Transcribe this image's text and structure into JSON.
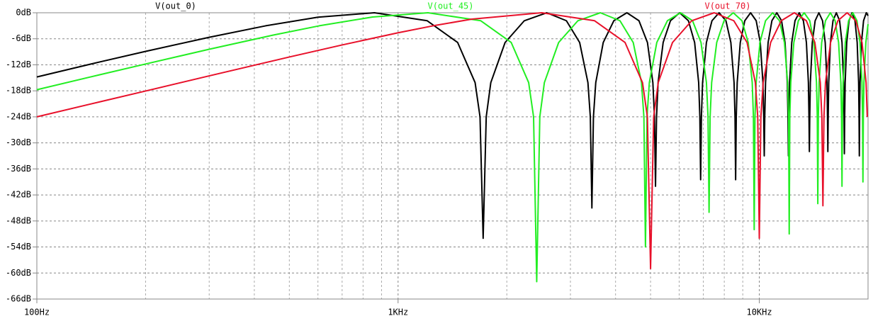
{
  "chart_data": {
    "type": "line",
    "x_scale": "log",
    "grid": true,
    "xlim": [
      100,
      20000
    ],
    "xticks": [
      {
        "value": 100,
        "label": "100Hz"
      },
      {
        "value": 1000,
        "label": "1KHz"
      },
      {
        "value": 10000,
        "label": "10KHz"
      }
    ],
    "xminorticks": [
      200,
      300,
      400,
      500,
      600,
      700,
      800,
      900,
      2000,
      3000,
      4000,
      5000,
      6000,
      7000,
      8000,
      9000,
      20000
    ],
    "ylim": [
      -66,
      0
    ],
    "yticks": [
      {
        "value": 0,
        "label": "0dB"
      },
      {
        "value": -6,
        "label": "-6dB"
      },
      {
        "value": -12,
        "label": "-12dB"
      },
      {
        "value": -18,
        "label": "-18dB"
      },
      {
        "value": -24,
        "label": "-24dB"
      },
      {
        "value": -30,
        "label": "-30dB"
      },
      {
        "value": -36,
        "label": "-36dB"
      },
      {
        "value": -42,
        "label": "-42dB"
      },
      {
        "value": -48,
        "label": "-48dB"
      },
      {
        "value": -54,
        "label": "-54dB"
      },
      {
        "value": -60,
        "label": "-60dB"
      },
      {
        "value": -66,
        "label": "-66dB"
      }
    ],
    "series": [
      {
        "name": "V(out_0)",
        "color": "#000000",
        "x": [
          100,
          150,
          200,
          300,
          430,
          600,
          860,
          1204,
          1462,
          1634,
          1686,
          1720,
          1754,
          1806,
          1978,
          2236,
          2580,
          2924,
          3182,
          3354,
          3406,
          3440,
          3474,
          3526,
          3698,
          3956,
          4300,
          4644,
          4902,
          5074,
          5126,
          5160,
          5194,
          5246,
          5418,
          5676,
          6020,
          6364,
          6622,
          6794,
          6846,
          6880,
          6914,
          6966,
          7138,
          7396,
          7740,
          8084,
          8342,
          8514,
          8566,
          8600,
          8634,
          8686,
          8858,
          9116,
          9460,
          9804,
          10062,
          10234,
          10286,
          10320,
          10354,
          10406,
          10578,
          10836,
          11180,
          11524,
          11782,
          11954,
          12006,
          12040,
          12074,
          12126,
          12298,
          12556,
          12900,
          13244,
          13502,
          13674,
          13726,
          13760,
          13794,
          13846,
          14018,
          14276,
          14620,
          14964,
          15222,
          15394,
          15446,
          15480,
          15514,
          15566,
          15738,
          15996,
          16340,
          16684,
          16942,
          17114,
          17166,
          17200,
          17234,
          17286,
          17458,
          17716,
          18060,
          18404,
          18662,
          18834,
          18886,
          18920,
          18954,
          19006,
          19178,
          19436,
          19780,
          20000
        ],
        "values": [
          -14.8,
          -11.3,
          -8.9,
          -5.66,
          -3.01,
          -1.02,
          0,
          -1.84,
          -6.86,
          -16.1,
          -24,
          -52,
          -24,
          -16.1,
          -6.86,
          -1.84,
          0,
          -1.84,
          -6.86,
          -16.1,
          -24,
          -45,
          -24,
          -16.1,
          -6.86,
          -1.84,
          0,
          -1.84,
          -6.86,
          -16.1,
          -24,
          -40,
          -24,
          -16.1,
          -6.86,
          -1.84,
          0,
          -1.84,
          -6.86,
          -16.1,
          -24,
          -38.5,
          -24,
          -16.1,
          -6.86,
          -1.84,
          0,
          -1.84,
          -6.86,
          -16.1,
          -24,
          -38.5,
          -24,
          -16.1,
          -6.86,
          -1.84,
          0,
          -1.84,
          -6.86,
          -16.1,
          -24,
          -33,
          -24,
          -16.1,
          -6.86,
          -1.84,
          0,
          -1.84,
          -6.86,
          -16.1,
          -24,
          -33,
          -24,
          -16.1,
          -6.86,
          -1.84,
          0,
          -1.84,
          -6.86,
          -16.1,
          -24,
          -32,
          -24,
          -16.1,
          -6.86,
          -1.84,
          0,
          -1.84,
          -6.86,
          -16.1,
          -24,
          -32,
          -24,
          -16.1,
          -6.86,
          -1.84,
          0,
          -1.84,
          -6.86,
          -16.1,
          -24,
          -32.5,
          -24,
          -16.1,
          -6.86,
          -1.84,
          0,
          -1.84,
          -6.86,
          -16.1,
          -24,
          -33,
          -24,
          -16.1,
          -6.86,
          -1.84,
          0,
          -0.7
        ]
      },
      {
        "name": "V(out_45)",
        "color": "#22ee22",
        "x": [
          100,
          150,
          200,
          300,
          450,
          605,
          850,
          1210,
          1694,
          2057,
          2299,
          2372,
          2420,
          2468,
          2541,
          2783,
          3146,
          3630,
          4114,
          4477,
          4719,
          4792,
          4840,
          4888,
          4961,
          5203,
          5566,
          6050,
          6534,
          6897,
          7139,
          7212,
          7260,
          7308,
          7381,
          7623,
          7986,
          8470,
          8954,
          9317,
          9559,
          9632,
          9680,
          9728,
          9801,
          10043,
          10406,
          10890,
          11374,
          11737,
          11979,
          12052,
          12100,
          12148,
          12221,
          12463,
          12826,
          13310,
          13794,
          14157,
          14399,
          14472,
          14520,
          14568,
          14641,
          14883,
          15246,
          15730,
          16214,
          16577,
          16819,
          16892,
          16940,
          16988,
          17061,
          17303,
          17666,
          18150,
          18634,
          18997,
          19239,
          19312,
          19360,
          19408,
          19481,
          19723,
          20000
        ],
        "values": [
          -17.75,
          -14.25,
          -11.81,
          -8.41,
          -5.17,
          -3.01,
          -0.98,
          0,
          -1.84,
          -6.86,
          -16.1,
          -24,
          -62,
          -24,
          -16.1,
          -6.86,
          -1.84,
          0,
          -1.84,
          -6.86,
          -16.1,
          -24,
          -54,
          -24,
          -16.1,
          -6.86,
          -1.84,
          0,
          -1.84,
          -6.86,
          -16.1,
          -24,
          -46,
          -24,
          -16.1,
          -6.86,
          -1.84,
          0,
          -1.84,
          -6.86,
          -16.1,
          -24,
          -50,
          -24,
          -16.1,
          -6.86,
          -1.84,
          0,
          -1.84,
          -6.86,
          -16.1,
          -24,
          -51,
          -24,
          -16.1,
          -6.86,
          -1.84,
          0,
          -1.84,
          -6.86,
          -16.1,
          -24,
          -44,
          -24,
          -16.1,
          -6.86,
          -1.84,
          0,
          -1.84,
          -6.86,
          -16.1,
          -24,
          -40,
          -24,
          -16.1,
          -6.86,
          -1.84,
          0,
          -1.84,
          -6.86,
          -16.1,
          -24,
          -39,
          -24,
          -16.1,
          -6.86,
          -2.64
        ]
      },
      {
        "name": "V(out_70)",
        "color": "#e8102a",
        "x": [
          100,
          150,
          200,
          300,
          500,
          700,
          1000,
          1250,
          1600,
          2500,
          3500,
          4250,
          4750,
          4900,
          5000,
          5100,
          5250,
          5750,
          6500,
          7500,
          8500,
          9250,
          9750,
          9900,
          10000,
          10100,
          10250,
          10750,
          11500,
          12500,
          13500,
          14250,
          14750,
          14900,
          15000,
          15100,
          15250,
          15750,
          16500,
          17500,
          18500,
          19250,
          19750,
          19900
        ],
        "values": [
          -24,
          -20.5,
          -18.04,
          -14.55,
          -10.2,
          -7.42,
          -4.62,
          -3.01,
          -1.47,
          0,
          -1.84,
          -6.86,
          -16.1,
          -24,
          -59,
          -24,
          -16.1,
          -6.86,
          -1.84,
          0,
          -1.84,
          -6.86,
          -16.1,
          -24,
          -52,
          -24,
          -16.1,
          -6.86,
          -1.84,
          0,
          -1.84,
          -6.86,
          -16.1,
          -24,
          -44.5,
          -24,
          -16.1,
          -6.86,
          -1.84,
          0,
          -1.84,
          -6.86,
          -16.1,
          -24
        ]
      }
    ]
  }
}
